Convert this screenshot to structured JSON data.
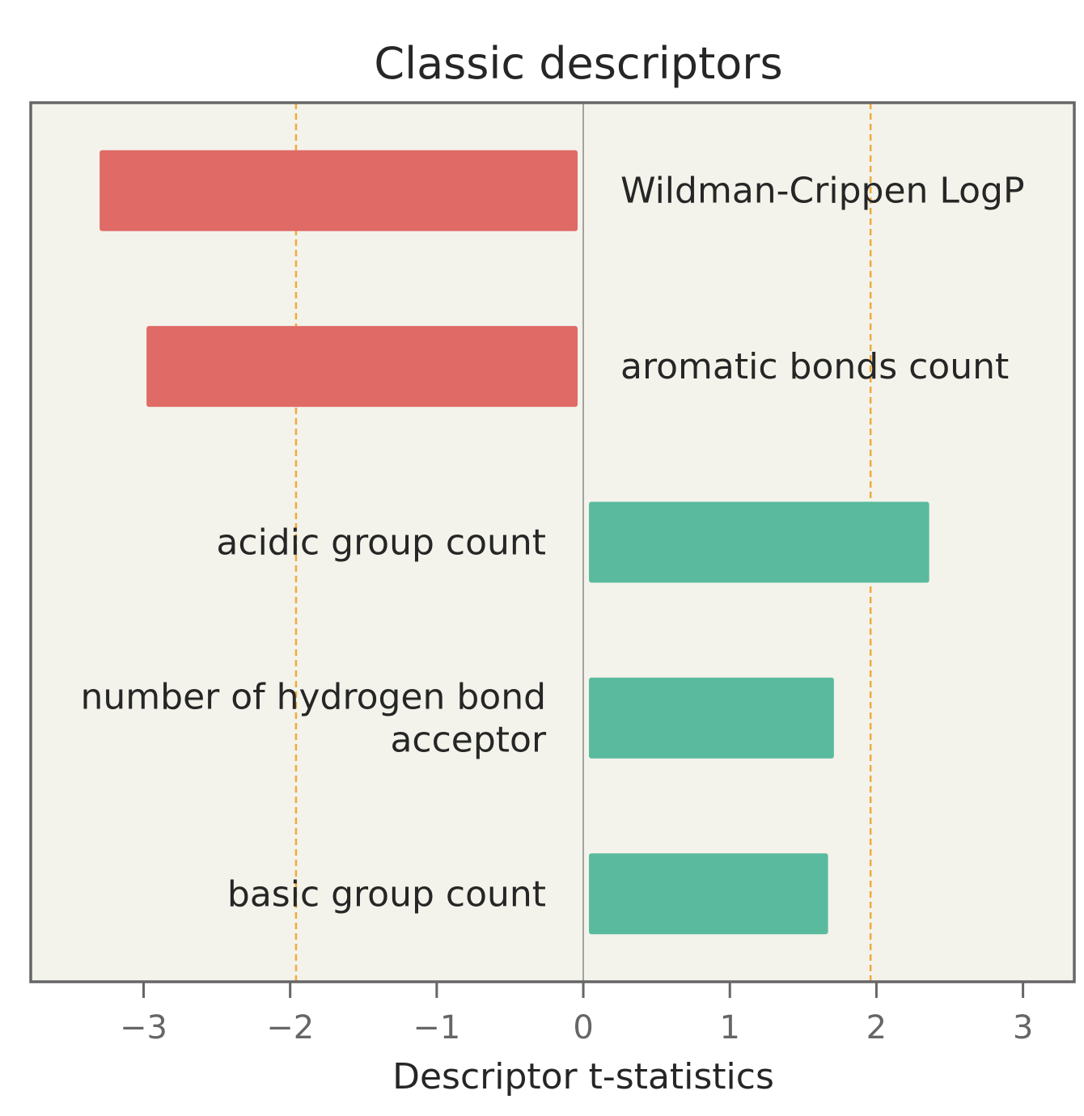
{
  "chart_data": {
    "type": "bar",
    "orientation": "horizontal",
    "title": "Classic descriptors",
    "xlabel": "Descriptor t-statistics",
    "ylabel": "",
    "xlim": [
      -3.77,
      3.35
    ],
    "xticks": [
      -3,
      -2,
      -1,
      0,
      1,
      2,
      3
    ],
    "xtick_labels": [
      "−3",
      "−2",
      "−1",
      "0",
      "1",
      "2",
      "3"
    ],
    "threshold_lines": [
      -1.96,
      1.96
    ],
    "grid": false,
    "bars": [
      {
        "label": "Wildman-Crippen LogP",
        "value": -3.3,
        "color": "#e06a66"
      },
      {
        "label": "aromatic bonds count",
        "value": -2.98,
        "color": "#e06a66"
      },
      {
        "label": "acidic group count",
        "value": 2.36,
        "color": "#5aba9e"
      },
      {
        "label": "number of hydrogen bond\nacceptor",
        "value": 1.71,
        "color": "#5aba9e"
      },
      {
        "label": "basic group count",
        "value": 1.67,
        "color": "#5aba9e"
      }
    ],
    "colors": {
      "negative": "#e06a66",
      "positive": "#5aba9e",
      "threshold": "#f2a93b",
      "background": "#f3f3eb",
      "frame": "#666666"
    }
  }
}
